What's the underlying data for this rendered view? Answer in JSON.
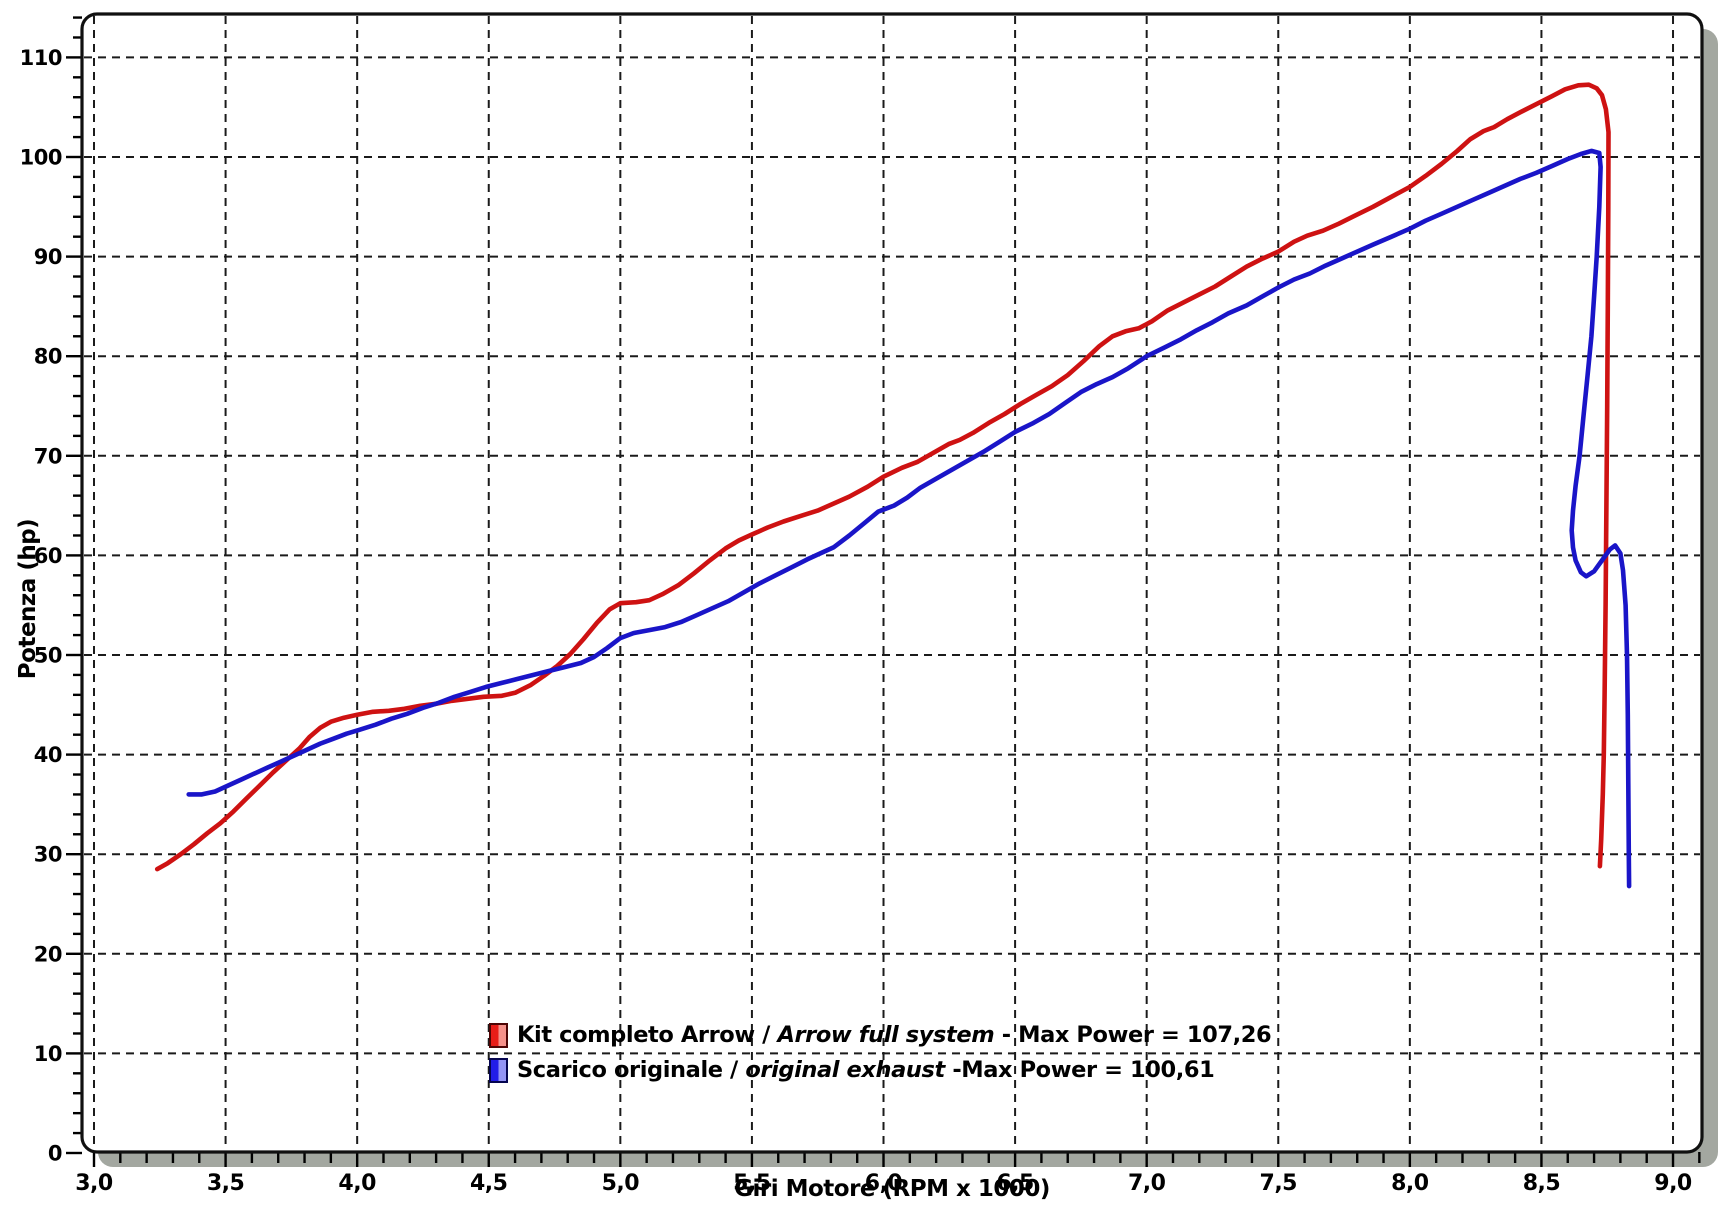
{
  "figure": {
    "background": "#ffffff",
    "frame_stroke": "#101010",
    "shadow_color": "#a3a7a0",
    "grid_color": "#1b1b1b",
    "tick_color": "#000000"
  },
  "axes": {
    "x": {
      "title": "Giri Motore (RPM x 1000)",
      "tick_values": [
        3.0,
        3.5,
        4.0,
        4.5,
        5.0,
        5.5,
        6.0,
        6.5,
        7.0,
        7.5,
        8.0,
        8.5,
        9.0
      ],
      "tick_labels": [
        "3,0",
        "3,5",
        "4,0",
        "4,5",
        "5,0",
        "5,5",
        "6,0",
        "6,5",
        "7,0",
        "7,5",
        "8,0",
        "8,5",
        "9,0"
      ],
      "minor_step": 0.1
    },
    "y": {
      "title": "Potenza (hp)",
      "tick_values": [
        0,
        10,
        20,
        30,
        40,
        50,
        60,
        70,
        80,
        90,
        100,
        110
      ],
      "tick_labels": [
        "0",
        "10",
        "20",
        "30",
        "40",
        "50",
        "60",
        "70",
        "80",
        "90",
        "100",
        "110"
      ],
      "minor_step": 2
    }
  },
  "legend": {
    "items": [
      {
        "label_regular": "Kit completo Arrow / ",
        "label_italic": "Arrow full system",
        "label_suffix": " - Max Power = 107,26",
        "swatch_left": "#e81d18",
        "swatch_right": "#f5918a",
        "swatch_border": "#4d0505"
      },
      {
        "label_regular": "Scarico originale / ",
        "label_italic": "original exhaust",
        "label_suffix": " -Max Power = 100,61",
        "swatch_left": "#221de8",
        "swatch_right": "#9394f4",
        "swatch_border": "#050550"
      }
    ]
  },
  "chart_data": {
    "type": "line",
    "title": "",
    "xlabel": "Giri Motore (RPM x 1000)",
    "ylabel": "Potenza (hp)",
    "xlim": [
      2.955,
      9.11
    ],
    "ylim": [
      0,
      114.3
    ],
    "grid": "dashed-both",
    "legend_position": "inside-bottom-left",
    "series": [
      {
        "name": "Kit completo Arrow / Arrow full system",
        "max_power": "107,26",
        "color": "#ce1212",
        "points": [
          [
            3.24,
            28.5
          ],
          [
            3.28,
            29.1
          ],
          [
            3.33,
            30.0
          ],
          [
            3.38,
            31.0
          ],
          [
            3.43,
            32.1
          ],
          [
            3.48,
            33.1
          ],
          [
            3.53,
            34.3
          ],
          [
            3.58,
            35.6
          ],
          [
            3.63,
            36.9
          ],
          [
            3.68,
            38.2
          ],
          [
            3.73,
            39.4
          ],
          [
            3.78,
            40.6
          ],
          [
            3.82,
            41.8
          ],
          [
            3.86,
            42.7
          ],
          [
            3.9,
            43.3
          ],
          [
            3.95,
            43.7
          ],
          [
            4.0,
            44.0
          ],
          [
            4.06,
            44.3
          ],
          [
            4.12,
            44.4
          ],
          [
            4.18,
            44.6
          ],
          [
            4.24,
            44.9
          ],
          [
            4.3,
            45.1
          ],
          [
            4.36,
            45.4
          ],
          [
            4.42,
            45.6
          ],
          [
            4.48,
            45.8
          ],
          [
            4.55,
            45.9
          ],
          [
            4.6,
            46.2
          ],
          [
            4.66,
            47.0
          ],
          [
            4.71,
            47.9
          ],
          [
            4.76,
            48.9
          ],
          [
            4.81,
            50.1
          ],
          [
            4.86,
            51.6
          ],
          [
            4.91,
            53.2
          ],
          [
            4.96,
            54.6
          ],
          [
            5.0,
            55.2
          ],
          [
            5.06,
            55.3
          ],
          [
            5.11,
            55.5
          ],
          [
            5.16,
            56.1
          ],
          [
            5.22,
            57.0
          ],
          [
            5.28,
            58.2
          ],
          [
            5.34,
            59.5
          ],
          [
            5.4,
            60.7
          ],
          [
            5.45,
            61.5
          ],
          [
            5.5,
            62.1
          ],
          [
            5.56,
            62.8
          ],
          [
            5.62,
            63.4
          ],
          [
            5.69,
            64.0
          ],
          [
            5.75,
            64.5
          ],
          [
            5.81,
            65.2
          ],
          [
            5.87,
            65.9
          ],
          [
            5.94,
            66.9
          ],
          [
            6.0,
            67.9
          ],
          [
            6.07,
            68.8
          ],
          [
            6.13,
            69.4
          ],
          [
            6.19,
            70.3
          ],
          [
            6.25,
            71.2
          ],
          [
            6.29,
            71.6
          ],
          [
            6.34,
            72.3
          ],
          [
            6.4,
            73.3
          ],
          [
            6.46,
            74.2
          ],
          [
            6.52,
            75.2
          ],
          [
            6.58,
            76.1
          ],
          [
            6.64,
            77.0
          ],
          [
            6.7,
            78.1
          ],
          [
            6.76,
            79.5
          ],
          [
            6.82,
            81.0
          ],
          [
            6.87,
            82.0
          ],
          [
            6.92,
            82.5
          ],
          [
            6.97,
            82.8
          ],
          [
            7.02,
            83.5
          ],
          [
            7.08,
            84.6
          ],
          [
            7.14,
            85.4
          ],
          [
            7.2,
            86.2
          ],
          [
            7.26,
            87.0
          ],
          [
            7.32,
            88.0
          ],
          [
            7.38,
            89.0
          ],
          [
            7.44,
            89.8
          ],
          [
            7.5,
            90.5
          ],
          [
            7.56,
            91.5
          ],
          [
            7.61,
            92.1
          ],
          [
            7.67,
            92.6
          ],
          [
            7.73,
            93.3
          ],
          [
            7.79,
            94.1
          ],
          [
            7.86,
            95.0
          ],
          [
            7.93,
            96.0
          ],
          [
            8.0,
            97.0
          ],
          [
            8.06,
            98.1
          ],
          [
            8.12,
            99.3
          ],
          [
            8.18,
            100.6
          ],
          [
            8.23,
            101.8
          ],
          [
            8.28,
            102.6
          ],
          [
            8.32,
            103.0
          ],
          [
            8.37,
            103.8
          ],
          [
            8.42,
            104.5
          ],
          [
            8.48,
            105.3
          ],
          [
            8.54,
            106.1
          ],
          [
            8.59,
            106.8
          ],
          [
            8.64,
            107.2
          ],
          [
            8.68,
            107.26
          ],
          [
            8.71,
            106.9
          ],
          [
            8.73,
            106.2
          ],
          [
            8.745,
            104.8
          ],
          [
            8.755,
            102.5
          ],
          [
            8.754,
            95.0
          ],
          [
            8.752,
            85.0
          ],
          [
            8.75,
            75.0
          ],
          [
            8.747,
            65.0
          ],
          [
            8.744,
            55.0
          ],
          [
            8.74,
            46.0
          ],
          [
            8.737,
            40.0
          ],
          [
            8.733,
            36.0
          ],
          [
            8.727,
            31.5
          ],
          [
            8.722,
            28.8
          ]
        ]
      },
      {
        "name": "Scarico originale / original exhaust",
        "max_power": "100,61",
        "color": "#1a15c8",
        "points": [
          [
            3.36,
            36.0
          ],
          [
            3.41,
            36.0
          ],
          [
            3.46,
            36.3
          ],
          [
            3.51,
            36.9
          ],
          [
            3.56,
            37.5
          ],
          [
            3.61,
            38.1
          ],
          [
            3.66,
            38.7
          ],
          [
            3.71,
            39.3
          ],
          [
            3.76,
            39.9
          ],
          [
            3.81,
            40.5
          ],
          [
            3.86,
            41.1
          ],
          [
            3.91,
            41.6
          ],
          [
            3.96,
            42.1
          ],
          [
            4.01,
            42.5
          ],
          [
            4.07,
            43.0
          ],
          [
            4.13,
            43.6
          ],
          [
            4.19,
            44.1
          ],
          [
            4.25,
            44.7
          ],
          [
            4.31,
            45.2
          ],
          [
            4.37,
            45.8
          ],
          [
            4.43,
            46.3
          ],
          [
            4.49,
            46.8
          ],
          [
            4.55,
            47.2
          ],
          [
            4.61,
            47.6
          ],
          [
            4.67,
            48.0
          ],
          [
            4.73,
            48.4
          ],
          [
            4.79,
            48.8
          ],
          [
            4.85,
            49.2
          ],
          [
            4.9,
            49.8
          ],
          [
            4.95,
            50.7
          ],
          [
            5.0,
            51.7
          ],
          [
            5.05,
            52.2
          ],
          [
            5.11,
            52.5
          ],
          [
            5.17,
            52.8
          ],
          [
            5.23,
            53.3
          ],
          [
            5.29,
            54.0
          ],
          [
            5.35,
            54.7
          ],
          [
            5.41,
            55.4
          ],
          [
            5.47,
            56.3
          ],
          [
            5.53,
            57.2
          ],
          [
            5.59,
            58.0
          ],
          [
            5.65,
            58.8
          ],
          [
            5.71,
            59.6
          ],
          [
            5.76,
            60.2
          ],
          [
            5.81,
            60.8
          ],
          [
            5.87,
            62.0
          ],
          [
            5.93,
            63.3
          ],
          [
            5.98,
            64.4
          ],
          [
            6.04,
            65.0
          ],
          [
            6.09,
            65.8
          ],
          [
            6.14,
            66.8
          ],
          [
            6.2,
            67.7
          ],
          [
            6.26,
            68.6
          ],
          [
            6.32,
            69.5
          ],
          [
            6.38,
            70.4
          ],
          [
            6.44,
            71.4
          ],
          [
            6.5,
            72.4
          ],
          [
            6.57,
            73.3
          ],
          [
            6.63,
            74.2
          ],
          [
            6.69,
            75.3
          ],
          [
            6.75,
            76.4
          ],
          [
            6.81,
            77.2
          ],
          [
            6.87,
            77.9
          ],
          [
            6.93,
            78.8
          ],
          [
            7.0,
            80.0
          ],
          [
            7.07,
            80.9
          ],
          [
            7.13,
            81.7
          ],
          [
            7.19,
            82.6
          ],
          [
            7.25,
            83.4
          ],
          [
            7.31,
            84.3
          ],
          [
            7.38,
            85.1
          ],
          [
            7.44,
            86.0
          ],
          [
            7.5,
            86.9
          ],
          [
            7.56,
            87.7
          ],
          [
            7.62,
            88.3
          ],
          [
            7.68,
            89.1
          ],
          [
            7.74,
            89.8
          ],
          [
            7.8,
            90.5
          ],
          [
            7.86,
            91.2
          ],
          [
            7.93,
            92.0
          ],
          [
            8.0,
            92.8
          ],
          [
            8.06,
            93.6
          ],
          [
            8.12,
            94.3
          ],
          [
            8.18,
            95.0
          ],
          [
            8.24,
            95.7
          ],
          [
            8.3,
            96.4
          ],
          [
            8.36,
            97.1
          ],
          [
            8.42,
            97.8
          ],
          [
            8.48,
            98.4
          ],
          [
            8.54,
            99.1
          ],
          [
            8.6,
            99.8
          ],
          [
            8.65,
            100.3
          ],
          [
            8.69,
            100.61
          ],
          [
            8.72,
            100.4
          ],
          [
            8.725,
            99.0
          ],
          [
            8.72,
            95.0
          ],
          [
            8.71,
            90.0
          ],
          [
            8.7,
            86.0
          ],
          [
            8.69,
            82.0
          ],
          [
            8.675,
            78.0
          ],
          [
            8.66,
            74.0
          ],
          [
            8.645,
            70.0
          ],
          [
            8.63,
            67.0
          ],
          [
            8.62,
            64.5
          ],
          [
            8.615,
            62.5
          ],
          [
            8.62,
            60.8
          ],
          [
            8.63,
            59.5
          ],
          [
            8.65,
            58.3
          ],
          [
            8.67,
            57.9
          ],
          [
            8.7,
            58.4
          ],
          [
            8.73,
            59.5
          ],
          [
            8.76,
            60.6
          ],
          [
            8.78,
            61.0
          ],
          [
            8.8,
            60.2
          ],
          [
            8.81,
            58.5
          ],
          [
            8.82,
            55.0
          ],
          [
            8.825,
            50.0
          ],
          [
            8.828,
            44.0
          ],
          [
            8.83,
            37.0
          ],
          [
            8.832,
            30.0
          ],
          [
            8.833,
            26.8
          ]
        ]
      }
    ]
  }
}
